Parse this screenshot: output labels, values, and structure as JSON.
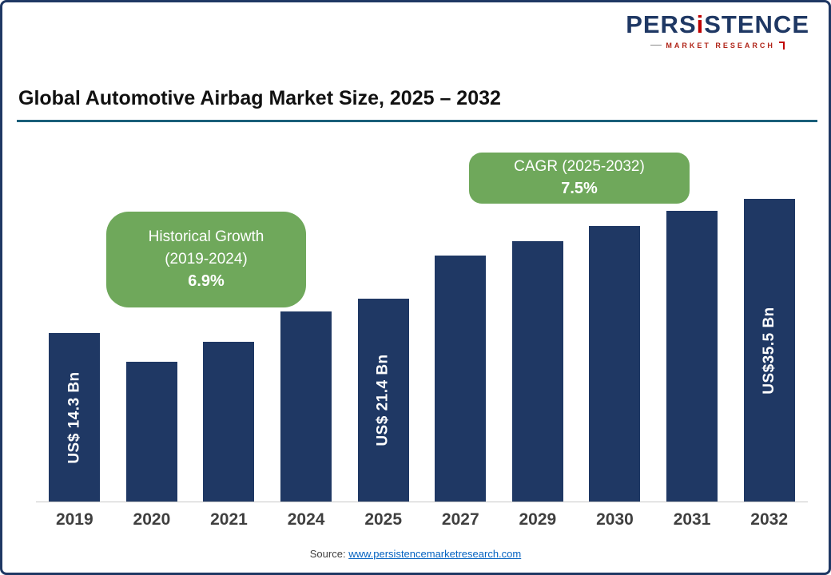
{
  "logo": {
    "name_prefix": "PERS",
    "name_i": "i",
    "name_suffix": "STENCE",
    "tagline": "MARKET RESEARCH",
    "blue": "#1F3864",
    "red": "#C00000"
  },
  "header": {
    "title": "Global Automotive Airbag Market Size, 2025 – 2032"
  },
  "chart_data": {
    "type": "bar",
    "title": "Global Automotive Airbag Market Size, 2025 – 2032",
    "xlabel": "",
    "ylabel": "",
    "unit": "US$ Bn",
    "categories": [
      "2019",
      "2020",
      "2021",
      "2024",
      "2025",
      "2027",
      "2029",
      "2030",
      "2031",
      "2032"
    ],
    "values": [
      14.3,
      12.1,
      13.6,
      20.0,
      21.4,
      24.7,
      28.6,
      30.7,
      33.0,
      35.5
    ],
    "bar_labels": [
      "US$ 14.3 Bn",
      null,
      null,
      null,
      "US$ 21.4 Bn",
      null,
      null,
      null,
      null,
      "US$35.5 Bn"
    ],
    "render_heights_pct": [
      55.6,
      46.3,
      52.7,
      62.7,
      67.0,
      81.2,
      86.0,
      91.0,
      96.0,
      100
    ],
    "bar_color": "#1F3864",
    "ylim": [
      0,
      38
    ],
    "grid": false,
    "legend": false,
    "annotations": {
      "historical": {
        "line1": "Historical Growth",
        "line2": "(2019-2024)",
        "value": "6.9%"
      },
      "cagr": {
        "line1": "CAGR (2025-2032)",
        "value": "7.5%"
      },
      "bg_color": "#6FA85B"
    }
  },
  "source": {
    "label": "Source:",
    "url_text": "www.persistencemarketresearch.com"
  },
  "colors": {
    "frame_border": "#1F3864",
    "title_rule": "#1A5F7A",
    "axis_line": "#C8C8C8",
    "year_label": "#3F3F3F",
    "link": "#0563C1"
  }
}
